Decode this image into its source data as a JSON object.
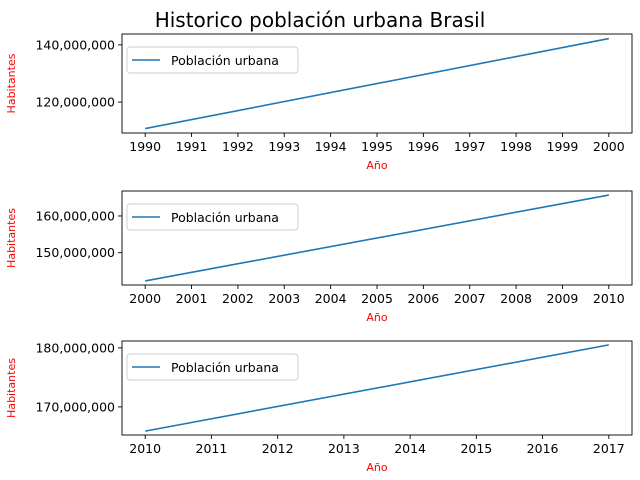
{
  "title": "Historico población urbana Brasil",
  "line_color": "#1f77b4",
  "label_color": "#ff0000",
  "chart_data": [
    {
      "type": "line",
      "xlabel": "Año",
      "ylabel": "Habitantes",
      "legend": "upper-left",
      "series": [
        {
          "name": "Población urbana",
          "x": [
            1990,
            2000
          ],
          "y": [
            110750000,
            142200000
          ]
        }
      ],
      "xticks": [
        1990,
        1991,
        1992,
        1993,
        1994,
        1995,
        1996,
        1997,
        1998,
        1999,
        2000
      ],
      "xtick_labels": [
        "1990",
        "1991",
        "1992",
        "1993",
        "1994",
        "1995",
        "1996",
        "1997",
        "1998",
        "1999",
        "2000"
      ],
      "yticks": [
        120000000,
        140000000
      ],
      "ytick_labels": [
        "120,000,000",
        "140,000,000"
      ],
      "xlim": [
        1989.5,
        2000.5
      ],
      "ylim": [
        109200000,
        143800000
      ]
    },
    {
      "type": "line",
      "xlabel": "Año",
      "ylabel": "Habitantes",
      "legend": "upper-left",
      "series": [
        {
          "name": "Población urbana",
          "x": [
            2000,
            2010
          ],
          "y": [
            142300000,
            165700000
          ]
        }
      ],
      "xticks": [
        2000,
        2001,
        2002,
        2003,
        2004,
        2005,
        2006,
        2007,
        2008,
        2009,
        2010
      ],
      "xtick_labels": [
        "2000",
        "2001",
        "2002",
        "2003",
        "2004",
        "2005",
        "2006",
        "2007",
        "2008",
        "2009",
        "2010"
      ],
      "yticks": [
        150000000,
        160000000
      ],
      "ytick_labels": [
        "150,000,000",
        "160,000,000"
      ],
      "xlim": [
        1999.5,
        2010.5
      ],
      "ylim": [
        141200000,
        166800000
      ]
    },
    {
      "type": "line",
      "xlabel": "Año",
      "ylabel": "Habitantes",
      "legend": "upper-left",
      "series": [
        {
          "name": "Población urbana",
          "x": [
            2010,
            2017
          ],
          "y": [
            165900000,
            180500000
          ]
        }
      ],
      "xticks": [
        2010,
        2011,
        2012,
        2013,
        2014,
        2015,
        2016,
        2017
      ],
      "xtick_labels": [
        "2010",
        "2011",
        "2012",
        "2013",
        "2014",
        "2015",
        "2016",
        "2017"
      ],
      "yticks": [
        170000000,
        180000000
      ],
      "ytick_labels": [
        "170,000,000",
        "180,000,000"
      ],
      "xlim": [
        2009.65,
        2017.35
      ],
      "ylim": [
        165240000,
        181160000
      ]
    }
  ]
}
